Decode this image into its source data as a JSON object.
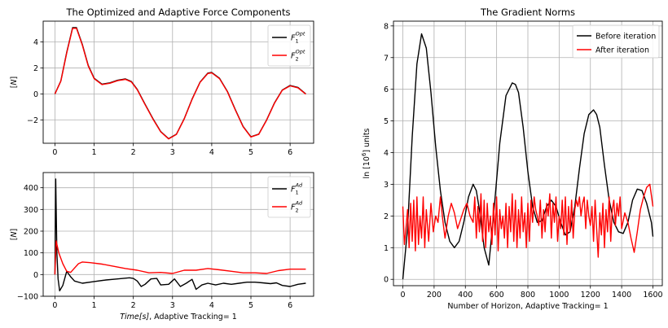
{
  "chart_data": [
    {
      "type": "line",
      "title": "The Optimized and Adaptive Force Components",
      "xlabel": "",
      "ylabel": "[N]",
      "xlim": [
        -0.3,
        6.6
      ],
      "ylim": [
        -3.8,
        5.6
      ],
      "xticks": [
        0,
        1,
        2,
        3,
        4,
        5,
        6
      ],
      "yticks": [
        -2,
        0,
        2,
        4
      ],
      "grid": true,
      "legend_position": "top-right",
      "colors": {
        "F1_opt": "#000000",
        "F2_opt": "#ff0000"
      },
      "legend": [
        {
          "sym": "F",
          "sub": "1",
          "sup": "Opt"
        },
        {
          "sym": "F",
          "sub": "2",
          "sup": "Opt"
        }
      ],
      "x": [
        0,
        0.15,
        0.3,
        0.45,
        0.55,
        0.7,
        0.85,
        1.0,
        1.2,
        1.4,
        1.6,
        1.8,
        1.95,
        2.1,
        2.3,
        2.5,
        2.7,
        2.9,
        3.1,
        3.3,
        3.5,
        3.7,
        3.9,
        4.0,
        4.2,
        4.4,
        4.6,
        4.8,
        5.0,
        5.2,
        5.4,
        5.6,
        5.8,
        6.0,
        6.2,
        6.4
      ],
      "series": [
        {
          "values": [
            0,
            1.0,
            3.2,
            5.1,
            5.1,
            3.8,
            2.2,
            1.2,
            0.75,
            0.85,
            1.05,
            1.15,
            0.95,
            0.35,
            -0.8,
            -1.9,
            -2.9,
            -3.45,
            -3.1,
            -1.9,
            -0.4,
            0.9,
            1.6,
            1.65,
            1.2,
            0.2,
            -1.2,
            -2.5,
            -3.3,
            -3.1,
            -2.0,
            -0.7,
            0.3,
            0.65,
            0.5,
            0.0
          ]
        },
        {
          "values": [
            0,
            0.98,
            3.15,
            5.05,
            5.05,
            3.75,
            2.15,
            1.17,
            0.72,
            0.82,
            1.02,
            1.12,
            0.92,
            0.32,
            -0.83,
            -1.93,
            -2.92,
            -3.47,
            -3.12,
            -1.92,
            -0.42,
            0.88,
            1.57,
            1.62,
            1.17,
            0.17,
            -1.23,
            -2.53,
            -3.32,
            -3.12,
            -2.02,
            -0.72,
            0.28,
            0.62,
            0.47,
            -0.02
          ]
        }
      ]
    },
    {
      "type": "line",
      "title": "",
      "xlabel": "Time[s], Adaptive Tracking= 1",
      "ylabel": "[N]",
      "xlim": [
        -0.3,
        6.6
      ],
      "ylim": [
        -100,
        470
      ],
      "xticks": [
        0,
        1,
        2,
        3,
        4,
        5,
        6
      ],
      "yticks": [
        -100,
        0,
        100,
        200,
        300,
        400
      ],
      "grid": true,
      "legend_position": "top-right",
      "colors": {
        "F1_ad": "#000000",
        "F2_ad": "#ff0000"
      },
      "legend": [
        {
          "sym": "F",
          "sub": "1",
          "sup": "Ad"
        },
        {
          "sym": "F",
          "sub": "2",
          "sup": "Ad"
        }
      ],
      "series": [
        {
          "x": [
            0,
            0.02,
            0.05,
            0.08,
            0.12,
            0.2,
            0.3,
            0.4,
            0.5,
            0.7,
            1.0,
            1.3,
            1.6,
            1.9,
            2.0,
            2.1,
            2.2,
            2.3,
            2.45,
            2.6,
            2.7,
            2.9,
            3.05,
            3.2,
            3.35,
            3.5,
            3.6,
            3.75,
            3.9,
            4.1,
            4.3,
            4.5,
            4.7,
            4.9,
            5.1,
            5.3,
            5.5,
            5.65,
            5.8,
            6.0,
            6.2,
            6.4
          ],
          "values": [
            0,
            440,
            100,
            -20,
            -75,
            -50,
            15,
            -10,
            -30,
            -40,
            -32,
            -25,
            -20,
            -15,
            -18,
            -30,
            -55,
            -45,
            -20,
            -18,
            -48,
            -45,
            -20,
            -55,
            -40,
            -22,
            -68,
            -48,
            -40,
            -48,
            -40,
            -45,
            -40,
            -35,
            -35,
            -38,
            -42,
            -38,
            -50,
            -55,
            -45,
            -40
          ]
        },
        {
          "x": [
            0,
            0.03,
            0.1,
            0.2,
            0.3,
            0.4,
            0.5,
            0.6,
            0.7,
            0.9,
            1.2,
            1.5,
            1.8,
            2.1,
            2.4,
            2.7,
            3.0,
            3.3,
            3.6,
            3.9,
            4.2,
            4.5,
            4.8,
            5.1,
            5.4,
            5.7,
            6.0,
            6.2,
            6.4
          ],
          "values": [
            0,
            155,
            100,
            50,
            15,
            10,
            30,
            50,
            58,
            55,
            48,
            38,
            28,
            20,
            8,
            10,
            5,
            20,
            20,
            28,
            22,
            15,
            8,
            8,
            5,
            18,
            25,
            25,
            25
          ]
        }
      ]
    },
    {
      "type": "line",
      "title": "The Gradient Norms",
      "xlabel": "Number of Horizon, Adaptive Tracking= 1",
      "ylabel": "ln [10^6] units",
      "xlim": [
        -60,
        1660
      ],
      "ylim": [
        -0.2,
        8.15
      ],
      "xticks": [
        0,
        200,
        400,
        600,
        800,
        1000,
        1200,
        1400,
        1600
      ],
      "yticks": [
        0,
        1,
        2,
        3,
        4,
        5,
        6,
        7,
        8
      ],
      "grid": true,
      "legend_position": "top-right",
      "colors": {
        "before": "#000000",
        "after": "#ff0000"
      },
      "legend": [
        {
          "label": "Before iteration"
        },
        {
          "label": "After iteration"
        }
      ],
      "series": [
        {
          "name": "Before iteration",
          "x": [
            0,
            30,
            60,
            90,
            120,
            150,
            180,
            210,
            240,
            270,
            300,
            330,
            360,
            390,
            420,
            450,
            470,
            490,
            520,
            550,
            580,
            620,
            660,
            700,
            720,
            740,
            770,
            800,
            830,
            860,
            890,
            920,
            950,
            980,
            1010,
            1040,
            1070,
            1100,
            1130,
            1160,
            1190,
            1220,
            1240,
            1260,
            1290,
            1320,
            1350,
            1380,
            1410,
            1440,
            1470,
            1500,
            1530,
            1560,
            1590,
            1600
          ],
          "values": [
            0,
            1.6,
            4.5,
            6.8,
            7.75,
            7.3,
            5.9,
            4.2,
            2.8,
            1.8,
            1.2,
            1.0,
            1.2,
            1.8,
            2.6,
            3.0,
            2.8,
            2.2,
            1.0,
            0.45,
            2.0,
            4.3,
            5.8,
            6.2,
            6.15,
            5.9,
            4.8,
            3.4,
            2.3,
            1.8,
            1.85,
            2.3,
            2.5,
            2.3,
            1.8,
            1.4,
            1.5,
            2.3,
            3.5,
            4.6,
            5.2,
            5.35,
            5.2,
            4.8,
            3.6,
            2.5,
            1.8,
            1.5,
            1.45,
            1.8,
            2.5,
            2.85,
            2.8,
            2.4,
            1.8,
            1.35
          ]
        },
        {
          "name": "After iteration",
          "x": [
            0,
            10,
            20,
            30,
            40,
            50,
            60,
            70,
            80,
            90,
            100,
            110,
            120,
            130,
            140,
            150,
            165,
            180,
            195,
            210,
            225,
            240,
            255,
            270,
            290,
            310,
            330,
            350,
            370,
            390,
            410,
            430,
            450,
            460,
            470,
            480,
            490,
            500,
            510,
            520,
            530,
            540,
            550,
            560,
            570,
            580,
            590,
            600,
            610,
            620,
            630,
            640,
            650,
            660,
            670,
            680,
            690,
            700,
            710,
            720,
            730,
            740,
            750,
            760,
            770,
            780,
            790,
            800,
            810,
            820,
            830,
            840,
            850,
            860,
            870,
            880,
            890,
            900,
            910,
            920,
            930,
            940,
            950,
            960,
            970,
            980,
            990,
            1000,
            1010,
            1020,
            1030,
            1040,
            1050,
            1060,
            1070,
            1080,
            1090,
            1100,
            1110,
            1120,
            1130,
            1140,
            1150,
            1160,
            1170,
            1180,
            1190,
            1200,
            1210,
            1220,
            1230,
            1240,
            1250,
            1260,
            1270,
            1280,
            1290,
            1300,
            1310,
            1320,
            1330,
            1340,
            1350,
            1360,
            1370,
            1380,
            1390,
            1400,
            1420,
            1440,
            1460,
            1480,
            1500,
            1520,
            1540,
            1560,
            1580,
            1600
          ],
          "values": [
            2.3,
            1.1,
            1.6,
            2.2,
            1.0,
            2.4,
            1.2,
            2.5,
            0.9,
            2.6,
            1.1,
            2.0,
            1.3,
            2.6,
            1.0,
            2.2,
            1.2,
            2.4,
            1.5,
            2.0,
            1.8,
            2.6,
            1.9,
            1.3,
            2.0,
            2.4,
            2.1,
            1.6,
            1.9,
            2.2,
            2.4,
            2.0,
            1.8,
            2.6,
            1.3,
            2.3,
            1.5,
            2.7,
            1.2,
            2.5,
            1.0,
            2.4,
            1.5,
            2.0,
            1.1,
            2.4,
            1.4,
            2.6,
            0.9,
            2.2,
            1.6,
            2.0,
            1.3,
            2.4,
            1.0,
            2.3,
            1.5,
            2.7,
            1.2,
            2.5,
            1.0,
            2.2,
            1.3,
            2.6,
            1.5,
            2.1,
            1.0,
            2.4,
            1.2,
            2.5,
            1.8,
            2.6,
            2.2,
            2.0,
            1.7,
            2.5,
            1.3,
            2.2,
            1.5,
            2.4,
            2.0,
            2.7,
            1.3,
            2.4,
            1.8,
            2.6,
            1.2,
            2.0,
            1.6,
            2.5,
            1.4,
            2.6,
            1.1,
            2.3,
            1.5,
            2.5,
            1.3,
            2.2,
            2.5,
            2.3,
            2.6,
            2.0,
            2.4,
            2.6,
            1.6,
            2.5,
            2.0,
            1.7,
            2.3,
            1.2,
            2.5,
            1.6,
            0.7,
            2.1,
            1.4,
            2.4,
            1.0,
            2.2,
            1.5,
            2.6,
            1.2,
            2.2,
            2.5,
            1.7,
            2.4,
            2.0,
            2.6,
            1.6,
            2.1,
            1.8,
            1.3,
            0.85,
            1.5,
            2.2,
            2.6,
            2.9,
            3.0,
            2.3
          ]
        }
      ]
    }
  ]
}
